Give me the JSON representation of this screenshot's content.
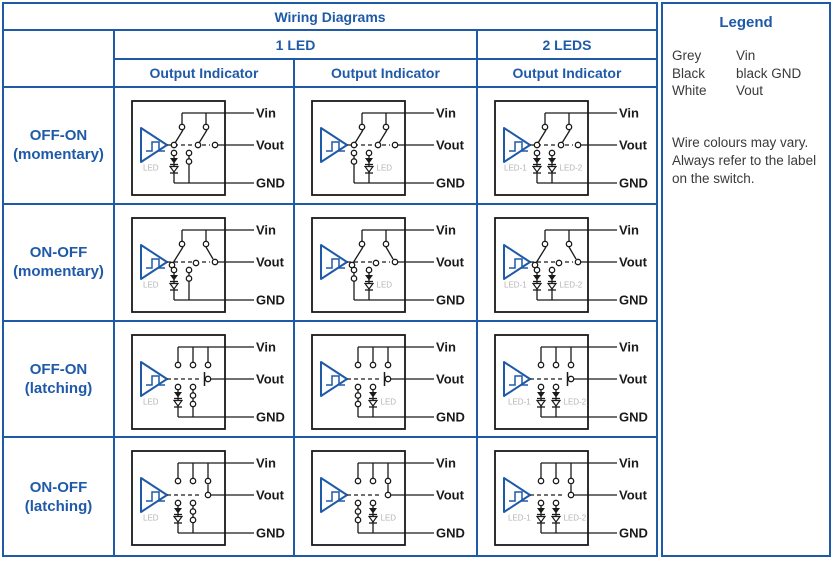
{
  "title": "Wiring Diagrams",
  "header": {
    "group_1led": "1 LED",
    "group_2leds": "2 LEDS",
    "subheader": "Output Indicator"
  },
  "rows": [
    {
      "name": "OFF-ON",
      "type": "(momentary)"
    },
    {
      "name": "ON-OFF",
      "type": "(momentary)"
    },
    {
      "name": "OFF-ON",
      "type": "(latching)"
    },
    {
      "name": "ON-OFF",
      "type": "(latching)"
    }
  ],
  "diagram_labels": {
    "vin": "Vin",
    "vout": "Vout",
    "gnd": "GND",
    "led": "LED",
    "led_1": "LED-1",
    "led_2": "LED-2"
  },
  "legend": {
    "title": "Legend",
    "entries": [
      {
        "colour": "Grey",
        "signal": "Vin"
      },
      {
        "colour": "Black",
        "signal": "black GND"
      },
      {
        "colour": "White",
        "signal": "Vout"
      }
    ],
    "note": "Wire colours may vary. Always refer to the label on the switch."
  },
  "colors": {
    "accent_blue": "#1f5aa9",
    "line_color": "#1a1a1a",
    "led_label_grey": "#b5b5b5"
  }
}
